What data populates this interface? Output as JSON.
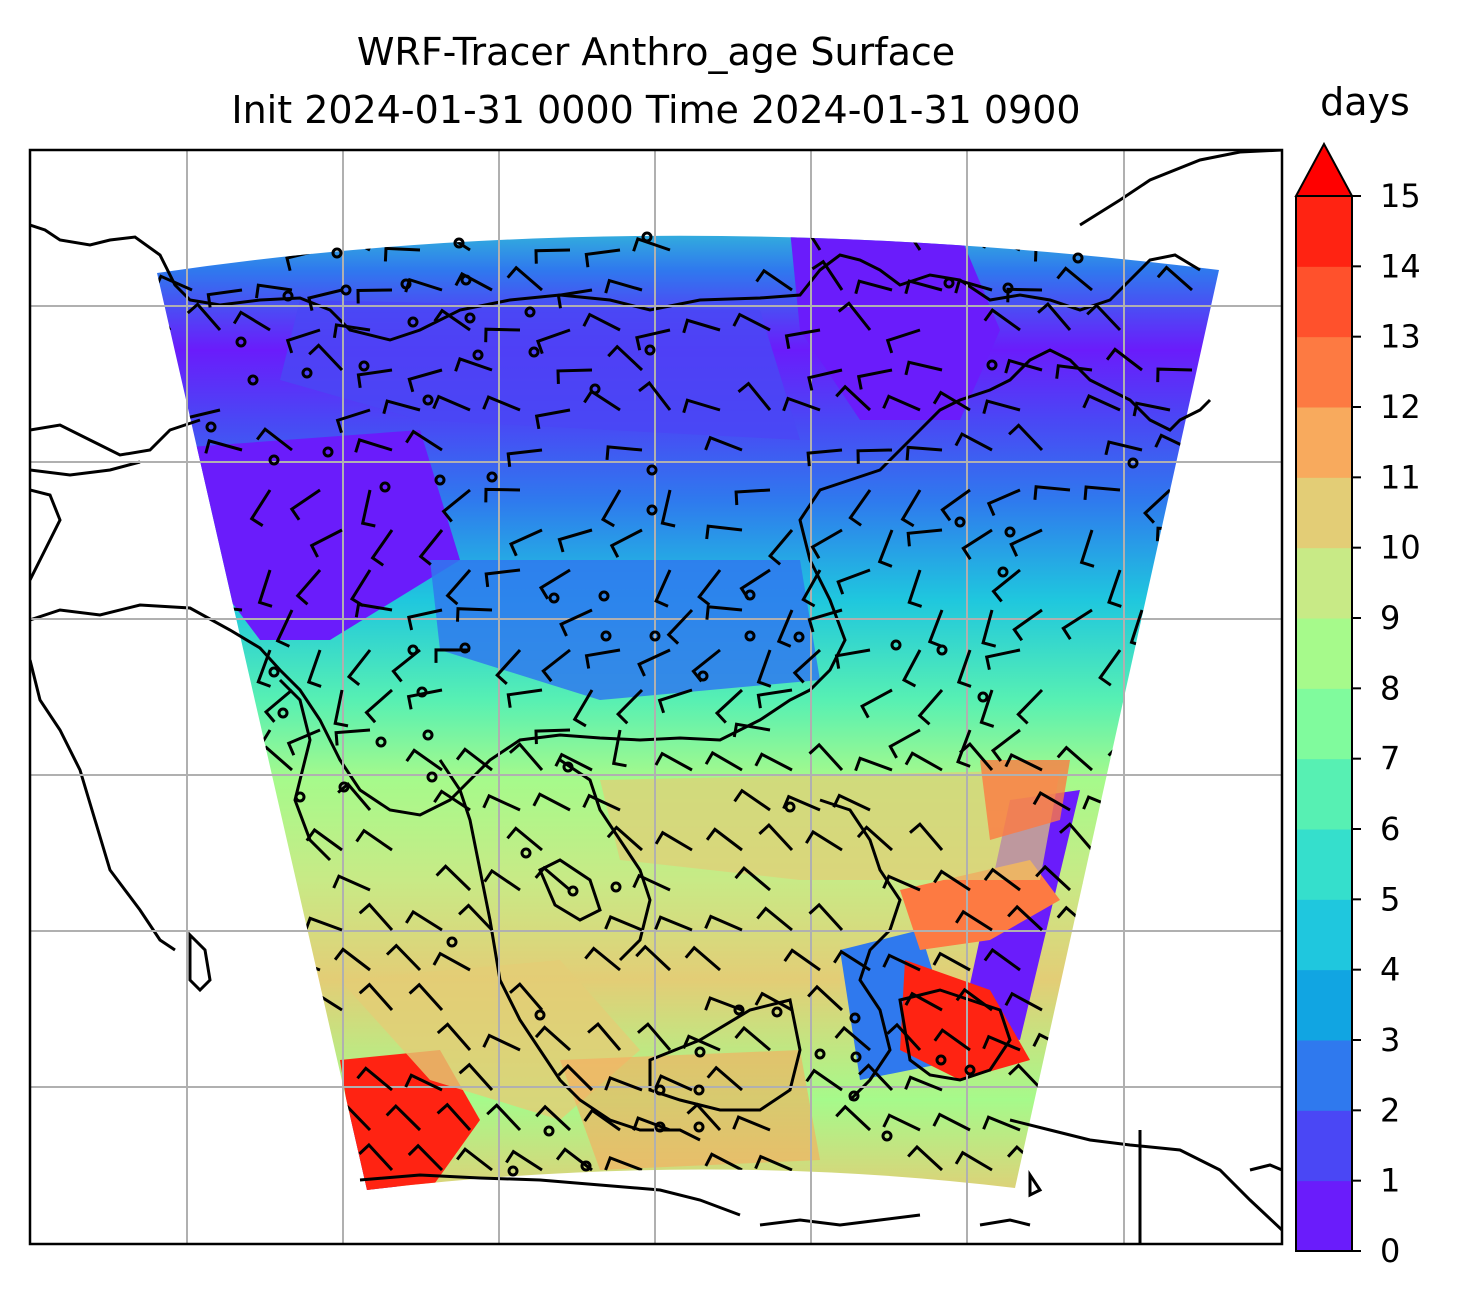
{
  "map": {
    "title_line1": "WRF-Tracer Anthro_age Surface",
    "title_line2": "Init 2024-01-31 0000 Time 2024-01-31 0900",
    "variable": "Anthro_age",
    "level": "Surface",
    "gridlines": true,
    "wind_barbs": true,
    "coastlines": true
  },
  "colorbar": {
    "units": "days",
    "min": 0,
    "max": 15,
    "extend": "max",
    "ticks": [
      "0",
      "1",
      "2",
      "3",
      "4",
      "5",
      "6",
      "7",
      "8",
      "9",
      "10",
      "11",
      "12",
      "13",
      "14",
      "15"
    ],
    "colors": [
      "#6a1cfb",
      "#4a47f5",
      "#2f79ee",
      "#11a5e2",
      "#1fc7de",
      "#35dfcc",
      "#57f0b3",
      "#80fb9d",
      "#a6fa8b",
      "#c8ea86",
      "#e3cd76",
      "#f8aa5d",
      "#fd7a42",
      "#ff512c",
      "#ff2312"
    ],
    "extend_color": "#ff0000"
  }
}
